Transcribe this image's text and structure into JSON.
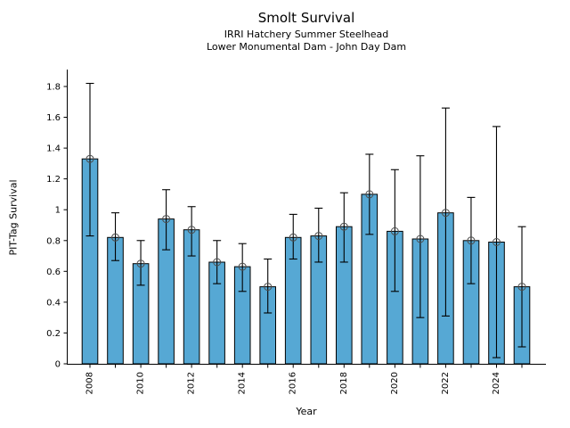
{
  "header": {
    "title": "Smolt Survival",
    "subtitle1": "IRRI Hatchery Summer Steelhead",
    "subtitle2": "Lower Monumental Dam - John Day Dam"
  },
  "chart_data": {
    "type": "bar",
    "title": "Smolt Survival",
    "subtitle": [
      "IRRI Hatchery Summer Steelhead",
      "Lower Monumental Dam - John Day Dam"
    ],
    "xlabel": "Year",
    "ylabel": "PIT-Tag Survival",
    "categories": [
      2008,
      2009,
      2010,
      2011,
      2012,
      2013,
      2014,
      2015,
      2016,
      2017,
      2018,
      2019,
      2020,
      2021,
      2022,
      2023,
      2024,
      2025
    ],
    "xtick_labels": [
      "2008",
      "",
      "2010",
      "",
      "2012",
      "",
      "2014",
      "",
      "2016",
      "",
      "2018",
      "",
      "2020",
      "",
      "2022",
      "",
      "2024",
      ""
    ],
    "values": [
      1.33,
      0.82,
      0.65,
      0.94,
      0.87,
      0.66,
      0.63,
      0.5,
      0.82,
      0.83,
      0.89,
      1.1,
      0.86,
      0.81,
      0.98,
      0.8,
      0.79,
      0.5
    ],
    "error_low": [
      0.83,
      0.67,
      0.51,
      0.74,
      0.7,
      0.52,
      0.47,
      0.33,
      0.68,
      0.66,
      0.66,
      0.84,
      0.47,
      0.3,
      0.31,
      0.52,
      0.04,
      0.11
    ],
    "error_high": [
      1.82,
      0.98,
      0.8,
      1.13,
      1.02,
      0.8,
      0.78,
      0.68,
      0.97,
      1.01,
      1.11,
      1.36,
      1.26,
      1.35,
      1.66,
      1.08,
      1.54,
      0.89
    ],
    "ylim": [
      0,
      1.87
    ],
    "ytick_values": [
      0,
      0.2,
      0.4,
      0.6,
      0.8,
      1,
      1.2,
      1.4,
      1.6,
      1.8
    ],
    "ytick_labels": [
      "0",
      "0.2",
      "0.4",
      "0.6",
      "0.8",
      "1",
      "1.2",
      "1.4",
      "1.6",
      "1.8"
    ],
    "grid": false,
    "legend": "none",
    "bar_color": "#56A8D4",
    "bar_edge_color": "#000000",
    "error_color": "#000000",
    "marker": "open-circle",
    "marker_color": "#4d4d4d"
  }
}
